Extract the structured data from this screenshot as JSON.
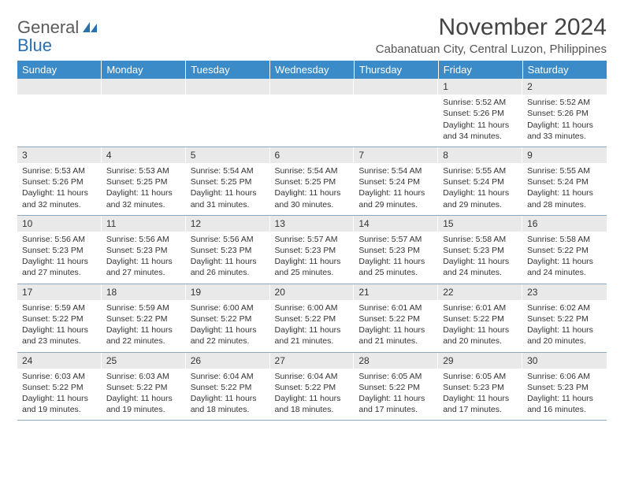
{
  "brand": {
    "text1": "General",
    "text2": "Blue"
  },
  "title": "November 2024",
  "location": "Cabanatuan City, Central Luzon, Philippines",
  "colors": {
    "header_bg": "#3b8bc9",
    "header_text": "#ffffff",
    "daynum_bg": "#e9e9e9",
    "row_border": "#8aa7c0",
    "brand_gray": "#5a5a5a",
    "brand_blue": "#2a6fb0",
    "body_text": "#333333",
    "page_bg": "#ffffff"
  },
  "dayNames": [
    "Sunday",
    "Monday",
    "Tuesday",
    "Wednesday",
    "Thursday",
    "Friday",
    "Saturday"
  ],
  "weeks": [
    [
      {
        "n": "",
        "sr": "",
        "ss": "",
        "dl": ""
      },
      {
        "n": "",
        "sr": "",
        "ss": "",
        "dl": ""
      },
      {
        "n": "",
        "sr": "",
        "ss": "",
        "dl": ""
      },
      {
        "n": "",
        "sr": "",
        "ss": "",
        "dl": ""
      },
      {
        "n": "",
        "sr": "",
        "ss": "",
        "dl": ""
      },
      {
        "n": "1",
        "sr": "Sunrise: 5:52 AM",
        "ss": "Sunset: 5:26 PM",
        "dl": "Daylight: 11 hours and 34 minutes."
      },
      {
        "n": "2",
        "sr": "Sunrise: 5:52 AM",
        "ss": "Sunset: 5:26 PM",
        "dl": "Daylight: 11 hours and 33 minutes."
      }
    ],
    [
      {
        "n": "3",
        "sr": "Sunrise: 5:53 AM",
        "ss": "Sunset: 5:26 PM",
        "dl": "Daylight: 11 hours and 32 minutes."
      },
      {
        "n": "4",
        "sr": "Sunrise: 5:53 AM",
        "ss": "Sunset: 5:25 PM",
        "dl": "Daylight: 11 hours and 32 minutes."
      },
      {
        "n": "5",
        "sr": "Sunrise: 5:54 AM",
        "ss": "Sunset: 5:25 PM",
        "dl": "Daylight: 11 hours and 31 minutes."
      },
      {
        "n": "6",
        "sr": "Sunrise: 5:54 AM",
        "ss": "Sunset: 5:25 PM",
        "dl": "Daylight: 11 hours and 30 minutes."
      },
      {
        "n": "7",
        "sr": "Sunrise: 5:54 AM",
        "ss": "Sunset: 5:24 PM",
        "dl": "Daylight: 11 hours and 29 minutes."
      },
      {
        "n": "8",
        "sr": "Sunrise: 5:55 AM",
        "ss": "Sunset: 5:24 PM",
        "dl": "Daylight: 11 hours and 29 minutes."
      },
      {
        "n": "9",
        "sr": "Sunrise: 5:55 AM",
        "ss": "Sunset: 5:24 PM",
        "dl": "Daylight: 11 hours and 28 minutes."
      }
    ],
    [
      {
        "n": "10",
        "sr": "Sunrise: 5:56 AM",
        "ss": "Sunset: 5:23 PM",
        "dl": "Daylight: 11 hours and 27 minutes."
      },
      {
        "n": "11",
        "sr": "Sunrise: 5:56 AM",
        "ss": "Sunset: 5:23 PM",
        "dl": "Daylight: 11 hours and 27 minutes."
      },
      {
        "n": "12",
        "sr": "Sunrise: 5:56 AM",
        "ss": "Sunset: 5:23 PM",
        "dl": "Daylight: 11 hours and 26 minutes."
      },
      {
        "n": "13",
        "sr": "Sunrise: 5:57 AM",
        "ss": "Sunset: 5:23 PM",
        "dl": "Daylight: 11 hours and 25 minutes."
      },
      {
        "n": "14",
        "sr": "Sunrise: 5:57 AM",
        "ss": "Sunset: 5:23 PM",
        "dl": "Daylight: 11 hours and 25 minutes."
      },
      {
        "n": "15",
        "sr": "Sunrise: 5:58 AM",
        "ss": "Sunset: 5:23 PM",
        "dl": "Daylight: 11 hours and 24 minutes."
      },
      {
        "n": "16",
        "sr": "Sunrise: 5:58 AM",
        "ss": "Sunset: 5:22 PM",
        "dl": "Daylight: 11 hours and 24 minutes."
      }
    ],
    [
      {
        "n": "17",
        "sr": "Sunrise: 5:59 AM",
        "ss": "Sunset: 5:22 PM",
        "dl": "Daylight: 11 hours and 23 minutes."
      },
      {
        "n": "18",
        "sr": "Sunrise: 5:59 AM",
        "ss": "Sunset: 5:22 PM",
        "dl": "Daylight: 11 hours and 22 minutes."
      },
      {
        "n": "19",
        "sr": "Sunrise: 6:00 AM",
        "ss": "Sunset: 5:22 PM",
        "dl": "Daylight: 11 hours and 22 minutes."
      },
      {
        "n": "20",
        "sr": "Sunrise: 6:00 AM",
        "ss": "Sunset: 5:22 PM",
        "dl": "Daylight: 11 hours and 21 minutes."
      },
      {
        "n": "21",
        "sr": "Sunrise: 6:01 AM",
        "ss": "Sunset: 5:22 PM",
        "dl": "Daylight: 11 hours and 21 minutes."
      },
      {
        "n": "22",
        "sr": "Sunrise: 6:01 AM",
        "ss": "Sunset: 5:22 PM",
        "dl": "Daylight: 11 hours and 20 minutes."
      },
      {
        "n": "23",
        "sr": "Sunrise: 6:02 AM",
        "ss": "Sunset: 5:22 PM",
        "dl": "Daylight: 11 hours and 20 minutes."
      }
    ],
    [
      {
        "n": "24",
        "sr": "Sunrise: 6:03 AM",
        "ss": "Sunset: 5:22 PM",
        "dl": "Daylight: 11 hours and 19 minutes."
      },
      {
        "n": "25",
        "sr": "Sunrise: 6:03 AM",
        "ss": "Sunset: 5:22 PM",
        "dl": "Daylight: 11 hours and 19 minutes."
      },
      {
        "n": "26",
        "sr": "Sunrise: 6:04 AM",
        "ss": "Sunset: 5:22 PM",
        "dl": "Daylight: 11 hours and 18 minutes."
      },
      {
        "n": "27",
        "sr": "Sunrise: 6:04 AM",
        "ss": "Sunset: 5:22 PM",
        "dl": "Daylight: 11 hours and 18 minutes."
      },
      {
        "n": "28",
        "sr": "Sunrise: 6:05 AM",
        "ss": "Sunset: 5:22 PM",
        "dl": "Daylight: 11 hours and 17 minutes."
      },
      {
        "n": "29",
        "sr": "Sunrise: 6:05 AM",
        "ss": "Sunset: 5:23 PM",
        "dl": "Daylight: 11 hours and 17 minutes."
      },
      {
        "n": "30",
        "sr": "Sunrise: 6:06 AM",
        "ss": "Sunset: 5:23 PM",
        "dl": "Daylight: 11 hours and 16 minutes."
      }
    ]
  ]
}
